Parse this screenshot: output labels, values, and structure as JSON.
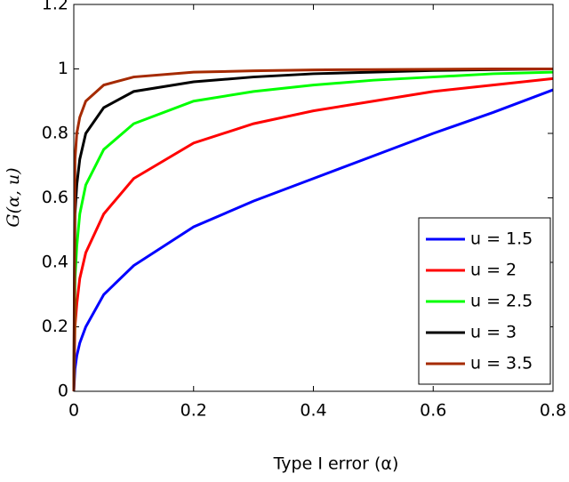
{
  "chart_data": {
    "type": "line",
    "x_label": "Type I error (α)",
    "y_label": "G(α, u)",
    "x": [
      0,
      0.002,
      0.005,
      0.01,
      0.02,
      0.05,
      0.1,
      0.2,
      0.3,
      0.4,
      0.5,
      0.6,
      0.7,
      0.8
    ],
    "series": [
      {
        "name": "u = 1.5",
        "color": "#0000ff",
        "values": [
          0,
          0.07,
          0.11,
          0.15,
          0.2,
          0.3,
          0.39,
          0.51,
          0.59,
          0.66,
          0.73,
          0.8,
          0.865,
          0.935
        ]
      },
      {
        "name": "u = 2",
        "color": "#ff0000",
        "values": [
          0,
          0.2,
          0.27,
          0.35,
          0.43,
          0.55,
          0.66,
          0.77,
          0.83,
          0.87,
          0.9,
          0.93,
          0.95,
          0.97
        ]
      },
      {
        "name": "u = 2.5",
        "color": "#00ff00",
        "values": [
          0,
          0.35,
          0.45,
          0.55,
          0.64,
          0.75,
          0.83,
          0.9,
          0.93,
          0.95,
          0.965,
          0.975,
          0.985,
          0.99
        ]
      },
      {
        "name": "u = 3",
        "color": "#000000",
        "values": [
          0,
          0.55,
          0.64,
          0.72,
          0.8,
          0.88,
          0.93,
          0.96,
          0.975,
          0.985,
          0.99,
          0.995,
          0.998,
          1.0
        ]
      },
      {
        "name": "u = 3.5",
        "color": "#a52a00",
        "values": [
          0,
          0.72,
          0.8,
          0.85,
          0.9,
          0.95,
          0.975,
          0.99,
          0.994,
          0.997,
          0.998,
          0.999,
          1.0,
          1.0
        ]
      }
    ],
    "xlim": [
      0,
      0.8
    ],
    "xticks": [
      0,
      0.2,
      0.4,
      0.6,
      0.8
    ],
    "ylim": [
      0,
      1.2
    ],
    "yticks": [
      0,
      0.2,
      0.4,
      0.6,
      0.8,
      1,
      1.2
    ],
    "legend": "lower right"
  }
}
